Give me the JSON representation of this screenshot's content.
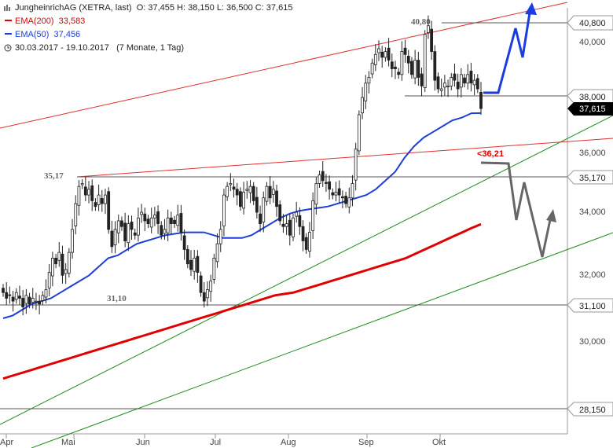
{
  "header": {
    "title": "JungheinrichAG (XETRA, last)",
    "ohlc": "O: 37,455  H: 38,150  L: 36,500  C: 37,615",
    "ema200_label": "EMA(200)",
    "ema200_value": "33,583",
    "ema50_label": "EMA(50)",
    "ema50_value": "37,456",
    "range": "30.03.2017 - 19.10.2017",
    "range_note": "(7 Monate, 1 Tag)"
  },
  "colors": {
    "candle": "#222222",
    "ema200": "#e00000",
    "ema50": "#1e3ed6",
    "trend_green": "#1f8a1f",
    "channel_red": "#e03030",
    "level_line": "#555555",
    "arrow_up": "#1a3de0",
    "arrow_down": "#666666",
    "price_tag": "#000000"
  },
  "chart_data": {
    "type": "candlestick",
    "x_ticks": [
      "Apr",
      "Mai",
      "Jun",
      "Jul",
      "Aug",
      "Sep",
      "Okt"
    ],
    "y_ticks": [
      "30,000",
      "32,000",
      "34,000",
      "36,000",
      "40,000"
    ],
    "ylim": [
      28,
      41.5
    ],
    "grid": false,
    "close": [
      31.2,
      31.0,
      31.1,
      30.9,
      31.2,
      31.0,
      30.7,
      31.1,
      30.8,
      31.0,
      30.9,
      30.8,
      31.1,
      31.3,
      31.9,
      32.4,
      32.2,
      32.6,
      31.8,
      32.0,
      32.6,
      33.4,
      34.3,
      34.9,
      35.0,
      34.6,
      34.8,
      34.4,
      34.2,
      34.6,
      34.3,
      34.6,
      33.4,
      32.8,
      33.4,
      33.7,
      33.5,
      33.0,
      33.6,
      33.4,
      33.2,
      33.8,
      34.0,
      33.7,
      33.6,
      33.8,
      33.9,
      33.6,
      33.2,
      33.4,
      33.8,
      33.6,
      33.6,
      33.9,
      33.3,
      32.7,
      32.2,
      32.0,
      32.4,
      31.9,
      31.2,
      30.9,
      31.3,
      31.6,
      32.4,
      32.9,
      33.4,
      34.6,
      34.9,
      35.0,
      34.8,
      34.6,
      34.2,
      34.7,
      34.8,
      34.9,
      34.4,
      34.0,
      33.6,
      34.5,
      34.9,
      34.5,
      34.8,
      34.2,
      33.7,
      33.5,
      33.6,
      33.2,
      33.8,
      34.0,
      33.5,
      33.0,
      32.7,
      33.3,
      34.4,
      35.0,
      35.3,
      35.1,
      35.0,
      34.8,
      34.6,
      34.7,
      34.6,
      34.5,
      34.3,
      34.5,
      35.0,
      36.2,
      37.4,
      38.0,
      38.5,
      38.7,
      39.2,
      39.5,
      39.7,
      39.4,
      39.6,
      39.3,
      39.0,
      39.0,
      38.8,
      39.6,
      39.5,
      39.2,
      38.8,
      39.3,
      38.7,
      38.4,
      40.2,
      40.5,
      39.6,
      38.6,
      38.3,
      38.3,
      38.5,
      38.4,
      38.7,
      38.6,
      38.3,
      38.8,
      38.5,
      38.8,
      38.5,
      38.6,
      38.3,
      37.615
    ],
    "ema200": [
      28.2,
      28.3,
      28.4,
      28.5,
      28.6,
      28.7,
      28.8,
      28.9,
      29.0,
      29.1,
      29.2,
      29.3,
      29.4,
      29.5,
      29.6,
      29.7,
      29.8,
      29.9,
      30.0,
      30.1,
      30.2,
      30.3,
      30.4,
      30.5,
      30.6,
      30.7,
      30.8,
      30.9,
      31.0,
      31.1,
      31.15,
      31.2,
      31.3,
      31.4,
      31.5,
      31.6,
      31.7,
      31.8,
      31.9,
      32.0,
      32.1,
      32.2,
      32.3,
      32.4,
      32.55,
      32.7,
      32.85,
      33.0,
      33.15,
      33.3,
      33.45,
      33.583
    ],
    "ema50": [
      30.3,
      30.4,
      30.6,
      30.8,
      30.9,
      31.0,
      31.2,
      31.4,
      31.6,
      31.8,
      32.1,
      32.4,
      32.5,
      32.7,
      32.9,
      33.0,
      33.1,
      33.2,
      33.25,
      33.3,
      33.3,
      33.3,
      33.2,
      33.1,
      33.1,
      33.1,
      33.2,
      33.4,
      33.6,
      33.8,
      33.95,
      34.05,
      34.1,
      34.15,
      34.2,
      34.3,
      34.4,
      34.5,
      34.6,
      34.8,
      35.1,
      35.4,
      35.9,
      36.3,
      36.6,
      36.8,
      37.0,
      37.2,
      37.3,
      37.45,
      37.456
    ],
    "levels": [
      {
        "value": 40.8,
        "axis_label": "40,800",
        "chart_label": "40,80"
      },
      {
        "value": 38.0,
        "axis_label": "38,000",
        "chart_label": ""
      },
      {
        "value": 35.17,
        "axis_label": "35,170",
        "chart_label": "35,17"
      },
      {
        "value": 31.1,
        "axis_label": "31,100",
        "chart_label": "31,10"
      },
      {
        "value": 28.15,
        "axis_label": "28,150",
        "chart_label": ""
      }
    ],
    "last_price_label": "37,615",
    "annotation": "<36,21"
  }
}
